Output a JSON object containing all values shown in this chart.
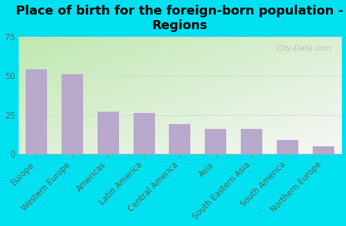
{
  "title": "Place of birth for the foreign-born population -\nRegions",
  "categories": [
    "Europe",
    "Western Europe",
    "Americas",
    "Latin America",
    "Central America",
    "Asia",
    "South Eastern Asia",
    "South America",
    "Northern Europe"
  ],
  "values": [
    54,
    51,
    27,
    26,
    19,
    16,
    16,
    9,
    5
  ],
  "bar_color": "#b8a8cc",
  "background_outer": "#00e0f0",
  "ylim": [
    0,
    75
  ],
  "yticks": [
    0,
    25,
    50,
    75
  ],
  "title_fontsize": 13,
  "tick_fontsize": 8.5,
  "tick_color": "#556655",
  "watermark": "City-Data.com",
  "gradient_colors": [
    "#c8e8b8",
    "#e8f8e0",
    "#f5fff5",
    "#f0f8ee"
  ],
  "gradient_top_left": "#c0e8b0",
  "gradient_top_right": "#e8f8e8",
  "gradient_bottom": "#f8fff8"
}
